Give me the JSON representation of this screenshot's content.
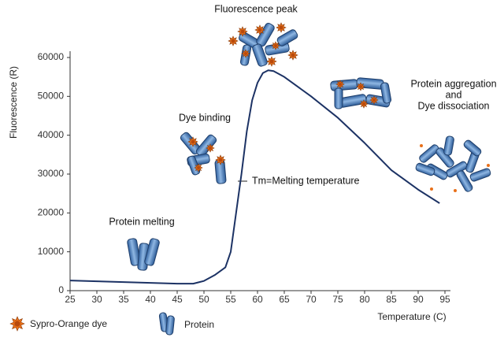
{
  "chart_data": {
    "type": "line",
    "x_label": "Temperature (C)",
    "y_label": "Fluorescence (R)",
    "x": [
      25,
      30,
      35,
      40,
      45,
      48,
      50,
      52,
      54,
      55,
      56,
      57,
      58,
      59,
      60,
      61,
      62,
      63,
      65,
      70,
      75,
      80,
      85,
      90,
      94
    ],
    "series": [
      {
        "color": "#1c3264",
        "values": [
          2600,
          2400,
          2200,
          2000,
          1800,
          1800,
          2500,
          4000,
          6000,
          10000,
          20000,
          30000,
          41000,
          49000,
          53500,
          56000,
          56700,
          56500,
          55000,
          50000,
          44500,
          38000,
          31000,
          26000,
          22500
        ]
      }
    ],
    "xlim": [
      25,
      95
    ],
    "xticks": [
      25,
      30,
      35,
      40,
      45,
      50,
      55,
      60,
      65,
      70,
      75,
      80,
      85,
      90,
      95
    ],
    "ylim": [
      0,
      60000
    ],
    "yticks": [
      0,
      10000,
      20000,
      30000,
      40000,
      50000,
      60000
    ],
    "annotations": [
      "Fluorescence peak",
      "Dye binding",
      "Protein melting",
      "Tm=Melting temperature",
      "Protein aggregation",
      "and",
      "Dye dissociation"
    ],
    "legend_items": [
      "Sypro-Orange dye",
      "Protein"
    ]
  }
}
